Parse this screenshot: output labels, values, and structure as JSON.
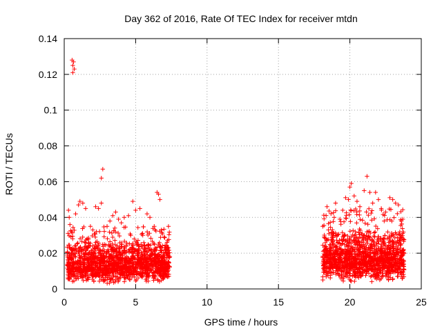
{
  "chart_data": {
    "type": "scatter",
    "title": "Day 362 of 2016, Rate Of TEC Index for receiver mtdn",
    "xlabel": "GPS time / hours",
    "ylabel": "ROTI / TECUs",
    "xlim": [
      0,
      25
    ],
    "ylim": [
      0,
      0.14
    ],
    "x_ticks": [
      0,
      5,
      10,
      15,
      20,
      25
    ],
    "x_tick_labels": [
      "0",
      "5",
      "10",
      "15",
      "20",
      "25"
    ],
    "y_ticks": [
      0,
      0.02,
      0.04,
      0.06,
      0.08,
      0.1,
      0.12,
      0.14
    ],
    "y_tick_labels": [
      "0",
      "0.02",
      "0.04",
      "0.06",
      "0.08",
      "0.1",
      "0.12",
      "0.14"
    ],
    "grid": true,
    "marker": "+",
    "color": "#ff0000",
    "series": [
      {
        "name": "ROTI",
        "points": [
          [
            0.55,
            0.128
          ],
          [
            0.6,
            0.125
          ],
          [
            0.6,
            0.121
          ],
          [
            0.65,
            0.127
          ],
          [
            0.7,
            0.123
          ],
          [
            0.3,
            0.044
          ],
          [
            0.35,
            0.04
          ],
          [
            0.4,
            0.036
          ],
          [
            0.5,
            0.032
          ],
          [
            0.8,
            0.042
          ],
          [
            1.0,
            0.047
          ],
          [
            1.1,
            0.049
          ],
          [
            1.3,
            0.048
          ],
          [
            1.5,
            0.045
          ],
          [
            1.6,
            0.028
          ],
          [
            2.0,
            0.033
          ],
          [
            2.2,
            0.046
          ],
          [
            2.4,
            0.045
          ],
          [
            2.6,
            0.048
          ],
          [
            2.6,
            0.062
          ],
          [
            2.7,
            0.067
          ],
          [
            2.8,
            0.021
          ],
          [
            3.0,
            0.035
          ],
          [
            3.2,
            0.038
          ],
          [
            3.4,
            0.041
          ],
          [
            3.6,
            0.043
          ],
          [
            3.8,
            0.039
          ],
          [
            4.0,
            0.037
          ],
          [
            4.2,
            0.04
          ],
          [
            4.5,
            0.041
          ],
          [
            4.8,
            0.049
          ],
          [
            5.0,
            0.044
          ],
          [
            5.3,
            0.045
          ],
          [
            5.5,
            0.03
          ],
          [
            5.8,
            0.042
          ],
          [
            6.0,
            0.04
          ],
          [
            6.3,
            0.035
          ],
          [
            6.5,
            0.054
          ],
          [
            6.6,
            0.053
          ],
          [
            6.7,
            0.05
          ],
          [
            6.8,
            0.033
          ],
          [
            7.0,
            0.029
          ],
          [
            7.2,
            0.026
          ],
          [
            7.3,
            0.023
          ],
          [
            18.1,
            0.035
          ],
          [
            18.2,
            0.029
          ],
          [
            18.3,
            0.022
          ],
          [
            18.4,
            0.046
          ],
          [
            18.5,
            0.033
          ],
          [
            18.7,
            0.027
          ],
          [
            18.9,
            0.04
          ],
          [
            19.0,
            0.048
          ],
          [
            19.3,
            0.039
          ],
          [
            19.5,
            0.044
          ],
          [
            19.7,
            0.051
          ],
          [
            19.9,
            0.05
          ],
          [
            20.0,
            0.057
          ],
          [
            20.1,
            0.059
          ],
          [
            20.3,
            0.052
          ],
          [
            20.5,
            0.049
          ],
          [
            20.7,
            0.046
          ],
          [
            21.0,
            0.055
          ],
          [
            21.2,
            0.063
          ],
          [
            21.4,
            0.054
          ],
          [
            21.6,
            0.048
          ],
          [
            21.8,
            0.054
          ],
          [
            22.0,
            0.05
          ],
          [
            22.2,
            0.045
          ],
          [
            22.5,
            0.043
          ],
          [
            22.8,
            0.051
          ],
          [
            23.0,
            0.05
          ],
          [
            23.2,
            0.048
          ],
          [
            23.4,
            0.047
          ],
          [
            23.6,
            0.038
          ],
          [
            23.7,
            0.031
          ]
        ]
      }
    ],
    "dense_segments": [
      {
        "x_range": [
          0.2,
          7.4
        ],
        "y_floor": 0.003,
        "y_base_range": [
          0.007,
          0.016
        ],
        "y_peak": 0.035,
        "count": 1600
      },
      {
        "x_range": [
          18.1,
          23.8
        ],
        "y_floor": 0.003,
        "y_base_range": [
          0.008,
          0.02
        ],
        "y_peak": 0.045,
        "count": 1400
      }
    ]
  }
}
